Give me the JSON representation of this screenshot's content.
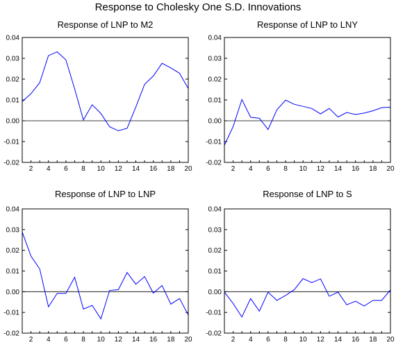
{
  "title": "Response to Cholesky One S.D. Innovations",
  "chart_data": [
    {
      "type": "line",
      "title": "Response of LNP to M2",
      "x": [
        1,
        2,
        3,
        4,
        5,
        6,
        7,
        8,
        9,
        10,
        11,
        12,
        13,
        14,
        15,
        16,
        17,
        18,
        19,
        20
      ],
      "series": [
        {
          "color": "#0000ff",
          "values": [
            0.0092,
            0.013,
            0.0183,
            0.0313,
            0.0331,
            0.0292,
            0.0153,
            0.0004,
            0.0077,
            0.0035,
            -0.0029,
            -0.0048,
            -0.0036,
            0.0066,
            0.0175,
            0.0215,
            0.0276,
            0.0254,
            0.0228,
            0.0155
          ]
        }
      ],
      "ylim": [
        -0.02,
        0.04
      ],
      "yticks": [
        "0.04",
        "0.03",
        "0.02",
        "0.01",
        "0.00",
        "-0.01",
        "-0.02"
      ],
      "xticks": [
        "2",
        "4",
        "6",
        "8",
        "10",
        "12",
        "14",
        "16",
        "18",
        "20"
      ]
    },
    {
      "type": "line",
      "title": "Response of LNP to LNY",
      "x": [
        1,
        2,
        3,
        4,
        5,
        6,
        7,
        8,
        9,
        10,
        11,
        12,
        13,
        14,
        15,
        16,
        17,
        18,
        19,
        20
      ],
      "series": [
        {
          "color": "#0000ff",
          "values": [
            -0.0117,
            -0.0028,
            0.0102,
            0.0017,
            0.0012,
            -0.0042,
            0.0052,
            0.0099,
            0.0079,
            0.0069,
            0.0059,
            0.0033,
            0.0059,
            0.0018,
            0.004,
            0.003,
            0.0037,
            0.0048,
            0.0063,
            0.0065
          ]
        }
      ],
      "ylim": [
        -0.02,
        0.04
      ],
      "yticks": [
        "0.04",
        "0.03",
        "0.02",
        "0.01",
        "0.00",
        "-0.01",
        "-0.02"
      ],
      "xticks": [
        "2",
        "4",
        "6",
        "8",
        "10",
        "12",
        "14",
        "16",
        "18",
        "20"
      ]
    },
    {
      "type": "line",
      "title": "Response of LNP to LNP",
      "x": [
        1,
        2,
        3,
        4,
        5,
        6,
        7,
        8,
        9,
        10,
        11,
        12,
        13,
        14,
        15,
        16,
        17,
        18,
        19,
        20
      ],
      "series": [
        {
          "color": "#0000ff",
          "values": [
            0.0288,
            0.0172,
            0.011,
            -0.0073,
            -0.0008,
            -0.0008,
            0.007,
            -0.0084,
            -0.0066,
            -0.0131,
            0.0006,
            0.001,
            0.0093,
            0.0036,
            0.0073,
            -0.0007,
            0.003,
            -0.006,
            -0.0033,
            -0.0112
          ]
        }
      ],
      "ylim": [
        -0.02,
        0.04
      ],
      "yticks": [
        "0.04",
        "0.03",
        "0.02",
        "0.01",
        "0.00",
        "-0.01",
        "-0.02"
      ],
      "xticks": [
        "2",
        "4",
        "6",
        "8",
        "10",
        "12",
        "14",
        "16",
        "18",
        "20"
      ]
    },
    {
      "type": "line",
      "title": "Response of LNP to S",
      "x": [
        1,
        2,
        3,
        4,
        5,
        6,
        7,
        8,
        9,
        10,
        11,
        12,
        13,
        14,
        15,
        16,
        17,
        18,
        19,
        20
      ],
      "series": [
        {
          "color": "#0000ff",
          "values": [
            -0.0002,
            -0.0057,
            -0.0122,
            -0.0033,
            -0.0094,
            -0.0002,
            -0.0042,
            -0.0018,
            0.001,
            0.0063,
            0.0044,
            0.0062,
            -0.0022,
            -0.0002,
            -0.0063,
            -0.0046,
            -0.0069,
            -0.0042,
            -0.0042,
            0.0009
          ]
        }
      ],
      "ylim": [
        -0.02,
        0.04
      ],
      "yticks": [
        "0.04",
        "0.03",
        "0.02",
        "0.01",
        "0.00",
        "-0.01",
        "-0.02"
      ],
      "xticks": [
        "2",
        "4",
        "6",
        "8",
        "10",
        "12",
        "14",
        "16",
        "18",
        "20"
      ]
    }
  ]
}
